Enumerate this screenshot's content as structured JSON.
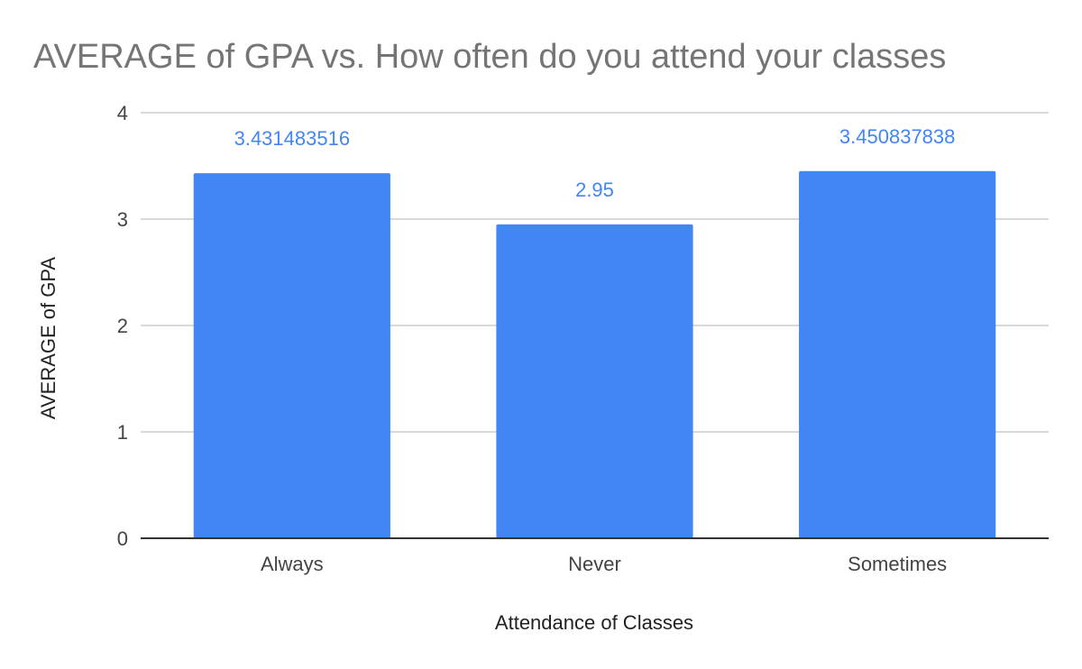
{
  "chart_data": {
    "type": "bar",
    "title": "AVERAGE of GPA vs. How often do you attend your classes",
    "xlabel": "Attendance of Classes",
    "ylabel": "AVERAGE of GPA",
    "categories": [
      "Always",
      "Never",
      "Sometimes"
    ],
    "values": [
      3.431483516,
      2.95,
      3.450837838
    ],
    "value_labels": [
      "3.431483516",
      "2.95",
      "3.450837838"
    ],
    "ylim": [
      0,
      4
    ],
    "yticks": [
      0,
      1,
      2,
      3,
      4
    ],
    "grid": true,
    "legend": "none",
    "bar_color": "#4285f4",
    "label_color": "#4285f4"
  }
}
